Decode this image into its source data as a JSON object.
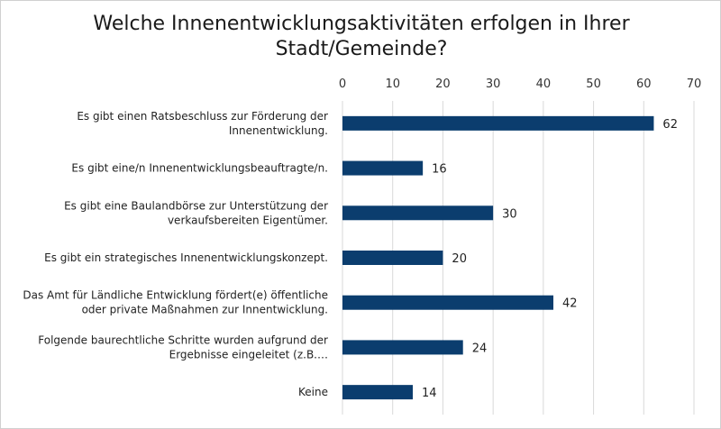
{
  "chart_data": {
    "type": "bar",
    "orientation": "horizontal",
    "title_lines": [
      "Welche Innenentwicklungsaktivitäten erfolgen in Ihrer",
      "Stadt/Gemeinde?"
    ],
    "categories": [
      [
        "Es gibt einen Ratsbeschluss zur Förderung der",
        "Innenentwicklung."
      ],
      [
        "Es gibt eine/n Innenentwicklungsbeauftragte/n."
      ],
      [
        "Es gibt eine Baulandbörse zur Unterstützung der",
        "verkaufsbereiten Eigentümer."
      ],
      [
        "Es gibt ein strategisches Innenentwicklungskonzept."
      ],
      [
        "Das Amt für Ländliche Entwicklung fördert(e) öffentliche",
        "oder private Maßnahmen zur Innentwicklung."
      ],
      [
        "Folgende baurechtliche Schritte wurden aufgrund der",
        "Ergebnisse eingeleitet (z.B.…"
      ],
      [
        "Keine"
      ]
    ],
    "values": [
      62,
      16,
      30,
      20,
      42,
      24,
      14
    ],
    "xlim": [
      0,
      70
    ],
    "x_ticks": [
      0,
      10,
      20,
      30,
      40,
      50,
      60,
      70
    ],
    "x_axis_position": "top",
    "grid": true,
    "bar_color": "#0b3d6e",
    "grid_color": "#d9d9d9"
  }
}
